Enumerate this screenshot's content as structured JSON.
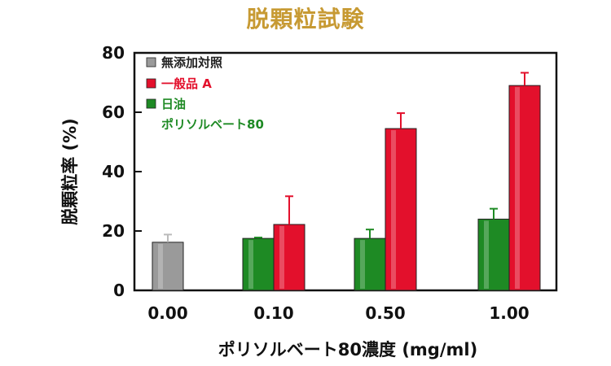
{
  "chart_data": {
    "type": "bar",
    "title": "脱顆粒試験",
    "xlabel": "ポリソルベート80濃度 (mg/ml)",
    "ylabel": "脱顆粒率 (%)",
    "ylim": [
      0,
      80
    ],
    "yticks": [
      "0",
      "20",
      "40",
      "60",
      "80"
    ],
    "categories": [
      "0.00",
      "0.10",
      "0.50",
      "1.00"
    ],
    "series": [
      {
        "name": "無添加対照",
        "color": "#9a9a9a",
        "values": [
          16.2,
          null,
          null,
          null
        ],
        "errors": [
          2.6,
          null,
          null,
          null
        ]
      },
      {
        "name": "日油 ポリソルベート80",
        "color": "#1e8a24",
        "values": [
          null,
          17.5,
          17.5,
          24.0
        ],
        "errors": [
          null,
          0.3,
          3.0,
          3.5
        ]
      },
      {
        "name": "一般品 A",
        "color": "#e3102c",
        "values": [
          null,
          22.2,
          54.5,
          69.0
        ],
        "errors": [
          null,
          9.5,
          5.2,
          4.3
        ]
      }
    ],
    "legend": {
      "placement": "top-left",
      "entries": [
        {
          "label": "無添加対照",
          "color": "#9a9a9a",
          "text_color": "#222222"
        },
        {
          "label": "一般品 A",
          "color": "#e3102c",
          "text_color": "#e3102c"
        },
        {
          "label": "日油",
          "label2": "ポリソルベート80",
          "color": "#1e8a24",
          "text_color": "#1e8a24"
        }
      ]
    }
  }
}
